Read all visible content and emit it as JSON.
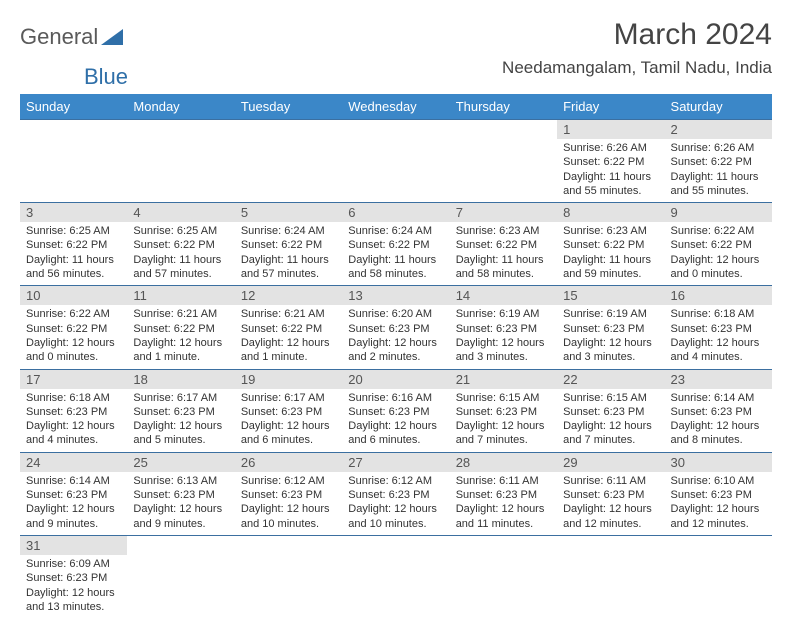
{
  "logo": {
    "word1": "General",
    "word2": "Blue",
    "tri_color": "#2f6fa8"
  },
  "title": "March 2024",
  "location": "Needamangalam, Tamil Nadu, India",
  "colors": {
    "header_bg": "#3b87c8",
    "header_text": "#ffffff",
    "daynum_bg": "#e3e3e3",
    "daynum_text": "#555555",
    "body_text": "#333333",
    "rule_color": "#3b6fa0",
    "title_color": "#444444"
  },
  "day_headers": [
    "Sunday",
    "Monday",
    "Tuesday",
    "Wednesday",
    "Thursday",
    "Friday",
    "Saturday"
  ],
  "weeks": [
    [
      null,
      null,
      null,
      null,
      null,
      {
        "n": "1",
        "sr": "Sunrise: 6:26 AM",
        "ss": "Sunset: 6:22 PM",
        "dl": "Daylight: 11 hours and 55 minutes."
      },
      {
        "n": "2",
        "sr": "Sunrise: 6:26 AM",
        "ss": "Sunset: 6:22 PM",
        "dl": "Daylight: 11 hours and 55 minutes."
      }
    ],
    [
      {
        "n": "3",
        "sr": "Sunrise: 6:25 AM",
        "ss": "Sunset: 6:22 PM",
        "dl": "Daylight: 11 hours and 56 minutes."
      },
      {
        "n": "4",
        "sr": "Sunrise: 6:25 AM",
        "ss": "Sunset: 6:22 PM",
        "dl": "Daylight: 11 hours and 57 minutes."
      },
      {
        "n": "5",
        "sr": "Sunrise: 6:24 AM",
        "ss": "Sunset: 6:22 PM",
        "dl": "Daylight: 11 hours and 57 minutes."
      },
      {
        "n": "6",
        "sr": "Sunrise: 6:24 AM",
        "ss": "Sunset: 6:22 PM",
        "dl": "Daylight: 11 hours and 58 minutes."
      },
      {
        "n": "7",
        "sr": "Sunrise: 6:23 AM",
        "ss": "Sunset: 6:22 PM",
        "dl": "Daylight: 11 hours and 58 minutes."
      },
      {
        "n": "8",
        "sr": "Sunrise: 6:23 AM",
        "ss": "Sunset: 6:22 PM",
        "dl": "Daylight: 11 hours and 59 minutes."
      },
      {
        "n": "9",
        "sr": "Sunrise: 6:22 AM",
        "ss": "Sunset: 6:22 PM",
        "dl": "Daylight: 12 hours and 0 minutes."
      }
    ],
    [
      {
        "n": "10",
        "sr": "Sunrise: 6:22 AM",
        "ss": "Sunset: 6:22 PM",
        "dl": "Daylight: 12 hours and 0 minutes."
      },
      {
        "n": "11",
        "sr": "Sunrise: 6:21 AM",
        "ss": "Sunset: 6:22 PM",
        "dl": "Daylight: 12 hours and 1 minute."
      },
      {
        "n": "12",
        "sr": "Sunrise: 6:21 AM",
        "ss": "Sunset: 6:22 PM",
        "dl": "Daylight: 12 hours and 1 minute."
      },
      {
        "n": "13",
        "sr": "Sunrise: 6:20 AM",
        "ss": "Sunset: 6:23 PM",
        "dl": "Daylight: 12 hours and 2 minutes."
      },
      {
        "n": "14",
        "sr": "Sunrise: 6:19 AM",
        "ss": "Sunset: 6:23 PM",
        "dl": "Daylight: 12 hours and 3 minutes."
      },
      {
        "n": "15",
        "sr": "Sunrise: 6:19 AM",
        "ss": "Sunset: 6:23 PM",
        "dl": "Daylight: 12 hours and 3 minutes."
      },
      {
        "n": "16",
        "sr": "Sunrise: 6:18 AM",
        "ss": "Sunset: 6:23 PM",
        "dl": "Daylight: 12 hours and 4 minutes."
      }
    ],
    [
      {
        "n": "17",
        "sr": "Sunrise: 6:18 AM",
        "ss": "Sunset: 6:23 PM",
        "dl": "Daylight: 12 hours and 4 minutes."
      },
      {
        "n": "18",
        "sr": "Sunrise: 6:17 AM",
        "ss": "Sunset: 6:23 PM",
        "dl": "Daylight: 12 hours and 5 minutes."
      },
      {
        "n": "19",
        "sr": "Sunrise: 6:17 AM",
        "ss": "Sunset: 6:23 PM",
        "dl": "Daylight: 12 hours and 6 minutes."
      },
      {
        "n": "20",
        "sr": "Sunrise: 6:16 AM",
        "ss": "Sunset: 6:23 PM",
        "dl": "Daylight: 12 hours and 6 minutes."
      },
      {
        "n": "21",
        "sr": "Sunrise: 6:15 AM",
        "ss": "Sunset: 6:23 PM",
        "dl": "Daylight: 12 hours and 7 minutes."
      },
      {
        "n": "22",
        "sr": "Sunrise: 6:15 AM",
        "ss": "Sunset: 6:23 PM",
        "dl": "Daylight: 12 hours and 7 minutes."
      },
      {
        "n": "23",
        "sr": "Sunrise: 6:14 AM",
        "ss": "Sunset: 6:23 PM",
        "dl": "Daylight: 12 hours and 8 minutes."
      }
    ],
    [
      {
        "n": "24",
        "sr": "Sunrise: 6:14 AM",
        "ss": "Sunset: 6:23 PM",
        "dl": "Daylight: 12 hours and 9 minutes."
      },
      {
        "n": "25",
        "sr": "Sunrise: 6:13 AM",
        "ss": "Sunset: 6:23 PM",
        "dl": "Daylight: 12 hours and 9 minutes."
      },
      {
        "n": "26",
        "sr": "Sunrise: 6:12 AM",
        "ss": "Sunset: 6:23 PM",
        "dl": "Daylight: 12 hours and 10 minutes."
      },
      {
        "n": "27",
        "sr": "Sunrise: 6:12 AM",
        "ss": "Sunset: 6:23 PM",
        "dl": "Daylight: 12 hours and 10 minutes."
      },
      {
        "n": "28",
        "sr": "Sunrise: 6:11 AM",
        "ss": "Sunset: 6:23 PM",
        "dl": "Daylight: 12 hours and 11 minutes."
      },
      {
        "n": "29",
        "sr": "Sunrise: 6:11 AM",
        "ss": "Sunset: 6:23 PM",
        "dl": "Daylight: 12 hours and 12 minutes."
      },
      {
        "n": "30",
        "sr": "Sunrise: 6:10 AM",
        "ss": "Sunset: 6:23 PM",
        "dl": "Daylight: 12 hours and 12 minutes."
      }
    ],
    [
      {
        "n": "31",
        "sr": "Sunrise: 6:09 AM",
        "ss": "Sunset: 6:23 PM",
        "dl": "Daylight: 12 hours and 13 minutes."
      },
      null,
      null,
      null,
      null,
      null,
      null
    ]
  ]
}
